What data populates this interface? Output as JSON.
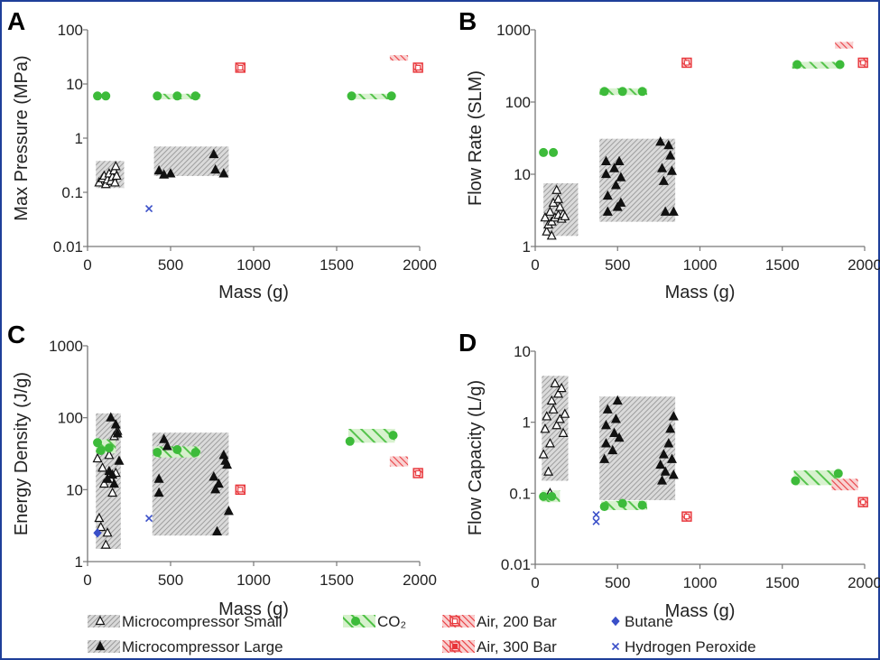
{
  "chart_data": [
    {
      "panel": "A",
      "type": "scatter",
      "xlabel": "Mass (g)",
      "ylabel": "Max Pressure (MPa)",
      "xlim": [
        0,
        2000
      ],
      "ylim": [
        0.01,
        100
      ],
      "yscale": "log",
      "xticks": [
        "0",
        "500",
        "1000",
        "1500",
        "2000"
      ],
      "yticks": [
        "0.01",
        "0.1",
        "1",
        "10",
        "100"
      ],
      "regions": [
        {
          "series": "Microcompressor Small",
          "x": [
            50,
            220
          ],
          "y": [
            0.12,
            0.38
          ]
        },
        {
          "series": "Microcompressor Large",
          "x": [
            400,
            850
          ],
          "y": [
            0.2,
            0.7
          ]
        },
        {
          "series": "CO2",
          "x": [
            400,
            680
          ],
          "y": [
            5.2,
            6.6
          ]
        },
        {
          "series": "CO2",
          "x": [
            1570,
            1850
          ],
          "y": [
            5.2,
            6.6
          ]
        },
        {
          "series": "Air, 300 Bar",
          "x": [
            1820,
            1930
          ],
          "y": [
            27,
            34
          ]
        }
      ],
      "series": [
        {
          "name": "Microcompressor Small",
          "points": [
            [
              70,
              0.15
            ],
            [
              90,
              0.18
            ],
            [
              100,
              0.2
            ],
            [
              110,
              0.14
            ],
            [
              120,
              0.17
            ],
            [
              130,
              0.22
            ],
            [
              140,
              0.16
            ],
            [
              150,
              0.19
            ],
            [
              160,
              0.25
            ],
            [
              165,
              0.15
            ],
            [
              170,
              0.3
            ],
            [
              175,
              0.2
            ]
          ]
        },
        {
          "name": "Microcompressor Large",
          "points": [
            [
              430,
              0.25
            ],
            [
              460,
              0.21
            ],
            [
              500,
              0.22
            ],
            [
              760,
              0.5
            ],
            [
              770,
              0.26
            ],
            [
              820,
              0.22
            ]
          ]
        },
        {
          "name": "CO2",
          "points": [
            [
              60,
              6
            ],
            [
              110,
              6
            ],
            [
              420,
              6
            ],
            [
              540,
              6
            ],
            [
              650,
              6
            ],
            [
              1590,
              6
            ],
            [
              1830,
              6
            ]
          ]
        },
        {
          "name": "Air, 200 Bar",
          "points": [
            [
              920,
              20
            ],
            [
              1990,
              20
            ]
          ]
        },
        {
          "name": "Air, 300 Bar",
          "points": []
        },
        {
          "name": "Butane",
          "points": []
        },
        {
          "name": "Hydrogen Peroxide",
          "points": [
            [
              370,
              0.05
            ]
          ]
        }
      ]
    },
    {
      "panel": "B",
      "type": "scatter",
      "xlabel": "Mass (g)",
      "ylabel": "Flow Rate (SLM)",
      "xlim": [
        0,
        2000
      ],
      "ylim": [
        1,
        1000
      ],
      "yscale": "log",
      "xticks": [
        "0",
        "500",
        "1000",
        "1500",
        "2000"
      ],
      "yticks": [
        "1",
        "10",
        "100",
        "1000"
      ],
      "regions": [
        {
          "series": "Microcompressor Small",
          "x": [
            50,
            260
          ],
          "y": [
            1.4,
            7.5
          ]
        },
        {
          "series": "Microcompressor Large",
          "x": [
            390,
            850
          ],
          "y": [
            2.2,
            31
          ]
        },
        {
          "series": "CO2",
          "x": [
            390,
            680
          ],
          "y": [
            125,
            155
          ]
        },
        {
          "series": "CO2",
          "x": [
            1560,
            1850
          ],
          "y": [
            290,
            360
          ]
        },
        {
          "series": "Air, 300 Bar",
          "x": [
            1820,
            1930
          ],
          "y": [
            550,
            680
          ]
        }
      ],
      "series": [
        {
          "name": "Microcompressor Small",
          "points": [
            [
              60,
              2.5
            ],
            [
              70,
              1.6
            ],
            [
              80,
              2
            ],
            [
              90,
              3
            ],
            [
              100,
              2.2
            ],
            [
              110,
              4
            ],
            [
              120,
              2.5
            ],
            [
              130,
              6
            ],
            [
              140,
              2.7
            ],
            [
              150,
              3.5
            ],
            [
              160,
              2.4
            ],
            [
              170,
              2.8
            ],
            [
              180,
              2.6
            ],
            [
              100,
              1.4
            ],
            [
              140,
              4.5
            ]
          ]
        },
        {
          "name": "Microcompressor Large",
          "points": [
            [
              430,
              15
            ],
            [
              430,
              10
            ],
            [
              440,
              5
            ],
            [
              440,
              3
            ],
            [
              480,
              12
            ],
            [
              490,
              7
            ],
            [
              500,
              3.5
            ],
            [
              510,
              15
            ],
            [
              520,
              9
            ],
            [
              520,
              4
            ],
            [
              760,
              28
            ],
            [
              770,
              12
            ],
            [
              780,
              8
            ],
            [
              790,
              3
            ],
            [
              810,
              25
            ],
            [
              820,
              18
            ],
            [
              830,
              11
            ],
            [
              840,
              3
            ]
          ]
        },
        {
          "name": "CO2",
          "points": [
            [
              50,
              20
            ],
            [
              110,
              20
            ],
            [
              420,
              140
            ],
            [
              530,
              140
            ],
            [
              650,
              140
            ],
            [
              1590,
              330
            ],
            [
              1850,
              330
            ]
          ]
        },
        {
          "name": "Air, 200 Bar",
          "points": [
            [
              920,
              350
            ],
            [
              1990,
              350
            ]
          ]
        },
        {
          "name": "Air, 300 Bar",
          "points": []
        },
        {
          "name": "Butane",
          "points": []
        },
        {
          "name": "Hydrogen Peroxide",
          "points": []
        }
      ]
    },
    {
      "panel": "C",
      "type": "scatter",
      "xlabel": "Mass (g)",
      "ylabel": "Energy Density (J/g)",
      "xlim": [
        0,
        2000
      ],
      "ylim": [
        1,
        1000
      ],
      "yscale": "log",
      "xticks": [
        "0",
        "500",
        "1000",
        "1500",
        "2000"
      ],
      "yticks": [
        "1",
        "10",
        "100",
        "1000"
      ],
      "regions": [
        {
          "series": "Microcompressor Small",
          "x": [
            50,
            200
          ],
          "y": [
            1.5,
            115
          ]
        },
        {
          "series": "Microcompressor Large",
          "x": [
            390,
            850
          ],
          "y": [
            2.3,
            62
          ]
        },
        {
          "series": "CO2",
          "x": [
            50,
            170
          ],
          "y": [
            32,
            50
          ]
        },
        {
          "series": "CO2",
          "x": [
            400,
            680
          ],
          "y": [
            28,
            40
          ]
        },
        {
          "series": "CO2",
          "x": [
            1570,
            1850
          ],
          "y": [
            45,
            70
          ]
        },
        {
          "series": "Air, 300 Bar",
          "x": [
            1820,
            1930
          ],
          "y": [
            21,
            29
          ]
        }
      ],
      "series": [
        {
          "name": "Microcompressor Small",
          "points": [
            [
              60,
              27
            ],
            [
              70,
              4
            ],
            [
              80,
              3
            ],
            [
              100,
              12
            ],
            [
              110,
              1.7
            ],
            [
              120,
              2.5
            ],
            [
              130,
              30
            ],
            [
              150,
              9
            ],
            [
              160,
              55
            ],
            [
              170,
              17
            ],
            [
              180,
              65
            ],
            [
              90,
              20
            ],
            [
              140,
              14
            ]
          ]
        },
        {
          "name": "Microcompressor Large",
          "points": [
            [
              120,
              14
            ],
            [
              130,
              18
            ],
            [
              140,
              100
            ],
            [
              150,
              16
            ],
            [
              160,
              12
            ],
            [
              170,
              80
            ],
            [
              180,
              60
            ],
            [
              190,
              25
            ],
            [
              430,
              14
            ],
            [
              430,
              9
            ],
            [
              460,
              50
            ],
            [
              480,
              40
            ],
            [
              760,
              15
            ],
            [
              770,
              10
            ],
            [
              780,
              2.6
            ],
            [
              790,
              12
            ],
            [
              820,
              30
            ],
            [
              830,
              25
            ],
            [
              840,
              22
            ],
            [
              850,
              5
            ]
          ]
        },
        {
          "name": "CO2",
          "points": [
            [
              60,
              45
            ],
            [
              80,
              35
            ],
            [
              130,
              38
            ],
            [
              420,
              33
            ],
            [
              540,
              36
            ],
            [
              650,
              33
            ],
            [
              1580,
              47
            ],
            [
              1840,
              57
            ]
          ]
        },
        {
          "name": "Air, 200 Bar",
          "points": [
            [
              920,
              10
            ],
            [
              1990,
              17
            ]
          ]
        },
        {
          "name": "Air, 300 Bar",
          "points": []
        },
        {
          "name": "Butane",
          "points": [
            [
              60,
              2.5
            ]
          ]
        },
        {
          "name": "Hydrogen Peroxide",
          "points": [
            [
              370,
              4
            ]
          ]
        }
      ]
    },
    {
      "panel": "D",
      "type": "scatter",
      "xlabel": "Mass (g)",
      "ylabel": "Flow Capacity (L/g)",
      "xlim": [
        0,
        2000
      ],
      "ylim": [
        0.01,
        10
      ],
      "yscale": "log",
      "xticks": [
        "0",
        "500",
        "1000",
        "1500",
        "2000"
      ],
      "yticks": [
        "0.01",
        "0.1",
        "1",
        "10"
      ],
      "regions": [
        {
          "series": "Microcompressor Small",
          "x": [
            40,
            200
          ],
          "y": [
            0.15,
            4.5
          ]
        },
        {
          "series": "Microcompressor Large",
          "x": [
            390,
            850
          ],
          "y": [
            0.08,
            2.3
          ]
        },
        {
          "series": "CO2",
          "x": [
            40,
            150
          ],
          "y": [
            0.075,
            0.11
          ]
        },
        {
          "series": "CO2",
          "x": [
            400,
            680
          ],
          "y": [
            0.058,
            0.078
          ]
        },
        {
          "series": "CO2",
          "x": [
            1570,
            1850
          ],
          "y": [
            0.13,
            0.21
          ]
        },
        {
          "series": "Air, 300 Bar",
          "x": [
            1800,
            1960
          ],
          "y": [
            0.11,
            0.16
          ]
        }
      ],
      "series": [
        {
          "name": "Microcompressor Small",
          "points": [
            [
              50,
              0.35
            ],
            [
              60,
              0.8
            ],
            [
              70,
              1.2
            ],
            [
              80,
              0.2
            ],
            [
              90,
              0.5
            ],
            [
              100,
              2
            ],
            [
              110,
              1.5
            ],
            [
              120,
              3.5
            ],
            [
              130,
              0.9
            ],
            [
              140,
              2.5
            ],
            [
              150,
              1.1
            ],
            [
              160,
              3
            ],
            [
              170,
              0.7
            ],
            [
              180,
              1.3
            ],
            [
              90,
              0.1
            ]
          ]
        },
        {
          "name": "Microcompressor Large",
          "points": [
            [
              420,
              0.3
            ],
            [
              430,
              0.5
            ],
            [
              430,
              0.9
            ],
            [
              440,
              1.5
            ],
            [
              470,
              0.4
            ],
            [
              480,
              0.7
            ],
            [
              490,
              1.1
            ],
            [
              500,
              2
            ],
            [
              510,
              0.6
            ],
            [
              760,
              0.25
            ],
            [
              770,
              0.15
            ],
            [
              780,
              0.35
            ],
            [
              790,
              0.2
            ],
            [
              810,
              0.5
            ],
            [
              820,
              0.8
            ],
            [
              830,
              0.3
            ],
            [
              840,
              1.2
            ],
            [
              840,
              0.18
            ]
          ]
        },
        {
          "name": "CO2",
          "points": [
            [
              50,
              0.09
            ],
            [
              100,
              0.09
            ],
            [
              420,
              0.065
            ],
            [
              530,
              0.072
            ],
            [
              650,
              0.068
            ],
            [
              1580,
              0.15
            ],
            [
              1840,
              0.19
            ]
          ]
        },
        {
          "name": "Air, 200 Bar",
          "points": [
            [
              920,
              0.047
            ],
            [
              1990,
              0.075
            ]
          ]
        },
        {
          "name": "Air, 300 Bar",
          "points": []
        },
        {
          "name": "Butane",
          "points": []
        },
        {
          "name": "Hydrogen Peroxide",
          "points": [
            [
              370,
              0.05
            ],
            [
              370,
              0.04
            ]
          ]
        }
      ]
    }
  ],
  "legend": {
    "items": [
      {
        "key": "Microcompressor Small",
        "label": "Microcompressor Small"
      },
      {
        "key": "CO2",
        "label": "CO₂"
      },
      {
        "key": "Air, 200 Bar",
        "label": "Air, 200 Bar"
      },
      {
        "key": "Butane",
        "label": "Butane"
      },
      {
        "key": "Microcompressor Large",
        "label": "Microcompressor Large"
      },
      {
        "key": "Air, 300 Bar",
        "label": "Air, 300 Bar"
      },
      {
        "key": "Hydrogen Peroxide",
        "label": "Hydrogen Peroxide"
      }
    ]
  },
  "colors": {
    "co2": "#3dbb3a",
    "co2_light": "#cdeec3",
    "air": "#e8353a",
    "air_light": "#f7c4c4",
    "gray": "#7d7d7d",
    "gray_light": "#d6d6d6",
    "butane": "#3a4fc8",
    "peroxide": "#3a4fc8",
    "dark": "#111111"
  }
}
